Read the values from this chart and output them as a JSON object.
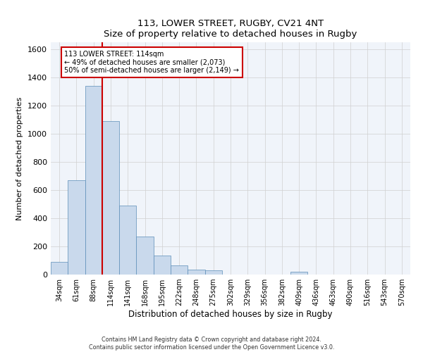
{
  "title1": "113, LOWER STREET, RUGBY, CV21 4NT",
  "title2": "Size of property relative to detached houses in Rugby",
  "xlabel": "Distribution of detached houses by size in Rugby",
  "ylabel": "Number of detached properties",
  "annotation_line1": "113 LOWER STREET: 114sqm",
  "annotation_line2": "← 49% of detached houses are smaller (2,073)",
  "annotation_line3": "50% of semi-detached houses are larger (2,149) →",
  "footer1": "Contains HM Land Registry data © Crown copyright and database right 2024.",
  "footer2": "Contains public sector information licensed under the Open Government Licence v3.0.",
  "bar_color": "#c9d9ec",
  "bar_edge_color": "#5b8db8",
  "vline_color": "#cc0000",
  "vline_x": 2.5,
  "categories": [
    "34sqm",
    "61sqm",
    "88sqm",
    "114sqm",
    "141sqm",
    "168sqm",
    "195sqm",
    "222sqm",
    "248sqm",
    "275sqm",
    "302sqm",
    "329sqm",
    "356sqm",
    "382sqm",
    "409sqm",
    "436sqm",
    "463sqm",
    "490sqm",
    "516sqm",
    "543sqm",
    "570sqm"
  ],
  "values": [
    90,
    670,
    1340,
    1090,
    490,
    270,
    135,
    65,
    35,
    30,
    0,
    0,
    0,
    0,
    20,
    0,
    0,
    0,
    0,
    0,
    0
  ],
  "ylim": [
    0,
    1650
  ],
  "yticks": [
    0,
    200,
    400,
    600,
    800,
    1000,
    1200,
    1400,
    1600
  ],
  "figsize": [
    6.0,
    5.0
  ],
  "dpi": 100
}
